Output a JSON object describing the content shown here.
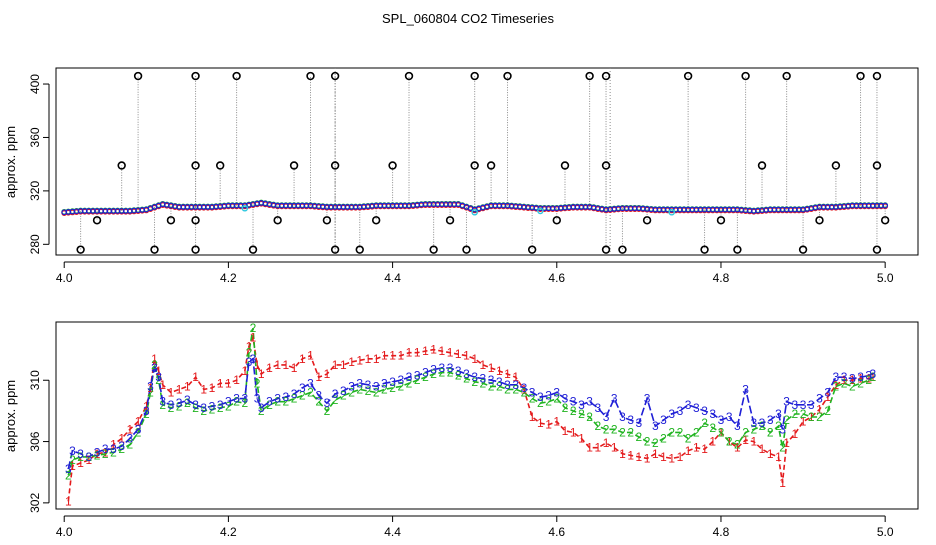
{
  "title": "SPL_060804  CO2 Timeseries",
  "colors": {
    "series1": "#e41a1c",
    "series2": "#21b421",
    "series3": "#1f1fd6",
    "spike": "#000000",
    "spikeLine": "#8c8c8c",
    "cyan": "#2ec8e0"
  },
  "chart_data": [
    {
      "type": "scatter",
      "title": "",
      "xlabel": "",
      "ylabel": "approx. ppm",
      "xlim": [
        3.99,
        5.04
      ],
      "ylim": [
        272,
        412
      ],
      "xticks": [
        4.0,
        4.2,
        4.4,
        4.6,
        4.8,
        5.0
      ],
      "xtick_labels": [
        "4.0",
        "4.2",
        "4.4",
        "4.6",
        "4.8",
        "5.0"
      ],
      "yticks": [
        280,
        320,
        360,
        400
      ],
      "ytick_labels": [
        "280",
        "320",
        "360",
        "400"
      ],
      "baseline": {
        "x": [
          4.0,
          4.02,
          4.04,
          4.06,
          4.08,
          4.1,
          4.12,
          4.14,
          4.16,
          4.18,
          4.2,
          4.22,
          4.24,
          4.26,
          4.28,
          4.3,
          4.32,
          4.34,
          4.36,
          4.38,
          4.4,
          4.42,
          4.44,
          4.46,
          4.48,
          4.5,
          4.52,
          4.54,
          4.56,
          4.58,
          4.6,
          4.62,
          4.64,
          4.66,
          4.68,
          4.7,
          4.72,
          4.74,
          4.76,
          4.78,
          4.8,
          4.82,
          4.84,
          4.86,
          4.88,
          4.9,
          4.92,
          4.94,
          4.96,
          4.98,
          5.0
        ],
        "y": [
          304,
          305,
          305,
          305,
          305,
          306,
          310,
          308,
          308,
          308,
          309,
          309,
          311,
          309,
          309,
          309,
          308,
          308,
          308,
          309,
          309,
          309,
          310,
          310,
          310,
          306,
          309,
          309,
          308,
          307,
          307,
          308,
          308,
          306,
          307,
          307,
          306,
          306,
          306,
          306,
          306,
          306,
          305,
          306,
          306,
          306,
          308,
          308,
          309,
          309,
          309
        ]
      },
      "spikes_high": [
        4.09,
        4.16,
        4.21,
        4.3,
        4.33,
        4.42,
        4.5,
        4.54,
        4.64,
        4.66,
        4.76,
        4.83,
        4.88,
        4.97,
        4.99
      ],
      "spikes_mid": [
        4.07,
        4.16,
        4.19,
        4.28,
        4.33,
        4.4,
        4.5,
        4.52,
        4.61,
        4.66,
        4.85,
        4.94,
        4.99
      ],
      "spikes_low": [
        4.02,
        4.11,
        4.16,
        4.23,
        4.33,
        4.36,
        4.45,
        4.49,
        4.57,
        4.66,
        4.68,
        4.78,
        4.82,
        4.9,
        4.99
      ],
      "spikes_dip": [
        4.04,
        4.13,
        4.16,
        4.26,
        4.32,
        4.38,
        4.47,
        4.6,
        4.71,
        4.8,
        4.92,
        5.0
      ],
      "spike_values": {
        "high": 406,
        "mid": 339,
        "low": 276,
        "dip": 298
      }
    },
    {
      "type": "line",
      "title": "",
      "xlabel": "",
      "ylabel": "approx. ppm",
      "xlim": [
        3.99,
        5.04
      ],
      "ylim": [
        301.6,
        313.8
      ],
      "xticks": [
        4.0,
        4.2,
        4.4,
        4.6,
        4.8,
        5.0
      ],
      "xtick_labels": [
        "4.0",
        "4.2",
        "4.4",
        "4.6",
        "4.8",
        "5.0"
      ],
      "yticks": [
        302,
        306,
        310
      ],
      "ytick_labels": [
        "302",
        "306",
        "310"
      ],
      "series": [
        {
          "name": "1",
          "x": [
            4.005,
            4.01,
            4.02,
            4.03,
            4.04,
            4.05,
            4.06,
            4.07,
            4.08,
            4.09,
            4.1,
            4.105,
            4.11,
            4.115,
            4.12,
            4.13,
            4.14,
            4.15,
            4.16,
            4.17,
            4.18,
            4.19,
            4.2,
            4.21,
            4.22,
            4.225,
            4.23,
            4.235,
            4.24,
            4.25,
            4.26,
            4.27,
            4.28,
            4.29,
            4.3,
            4.31,
            4.32,
            4.33,
            4.34,
            4.35,
            4.36,
            4.37,
            4.38,
            4.39,
            4.4,
            4.41,
            4.42,
            4.43,
            4.44,
            4.45,
            4.46,
            4.47,
            4.48,
            4.49,
            4.5,
            4.51,
            4.52,
            4.53,
            4.54,
            4.55,
            4.56,
            4.57,
            4.58,
            4.59,
            4.6,
            4.61,
            4.62,
            4.63,
            4.64,
            4.65,
            4.66,
            4.67,
            4.68,
            4.69,
            4.7,
            4.71,
            4.72,
            4.73,
            4.74,
            4.75,
            4.76,
            4.77,
            4.78,
            4.79,
            4.8,
            4.81,
            4.82,
            4.83,
            4.84,
            4.85,
            4.86,
            4.87,
            4.875,
            4.88,
            4.89,
            4.9,
            4.91,
            4.92,
            4.93,
            4.94,
            4.95,
            4.96,
            4.97,
            4.98,
            4.985
          ],
          "y": [
            302.1,
            304.4,
            304.6,
            304.8,
            305.2,
            305.3,
            305.8,
            306.2,
            306.8,
            307.3,
            308.3,
            309.5,
            311.4,
            310.6,
            309.7,
            309.2,
            309.4,
            309.6,
            310.2,
            309.4,
            309.5,
            309.8,
            309.8,
            310.0,
            310.6,
            312.2,
            312.8,
            311.0,
            310.4,
            310.8,
            311.0,
            311.0,
            310.8,
            311.4,
            311.6,
            310.2,
            310.4,
            311.0,
            311.0,
            311.2,
            311.3,
            311.4,
            311.4,
            311.6,
            311.6,
            311.6,
            311.8,
            311.8,
            311.9,
            312.0,
            311.9,
            311.8,
            311.7,
            311.6,
            311.4,
            311.0,
            310.8,
            310.6,
            310.4,
            310.2,
            309.4,
            307.6,
            307.2,
            307.1,
            307.3,
            306.7,
            306.6,
            306.2,
            305.6,
            305.6,
            305.9,
            305.6,
            305.2,
            305.1,
            305.0,
            304.9,
            305.2,
            305.0,
            304.9,
            305.0,
            305.4,
            305.6,
            305.5,
            306.0,
            306.6,
            306.0,
            305.6,
            306.1,
            306.0,
            305.5,
            305.2,
            305.0,
            303.3,
            305.9,
            306.5,
            307.3,
            307.6,
            308.1,
            308.9,
            309.7,
            310.0,
            310.0,
            310.1,
            310.1,
            310.2
          ]
        },
        {
          "name": "2",
          "x": [
            4.005,
            4.01,
            4.02,
            4.03,
            4.04,
            4.05,
            4.06,
            4.07,
            4.08,
            4.09,
            4.1,
            4.105,
            4.11,
            4.115,
            4.12,
            4.13,
            4.14,
            4.15,
            4.16,
            4.17,
            4.18,
            4.19,
            4.2,
            4.21,
            4.22,
            4.225,
            4.23,
            4.235,
            4.24,
            4.25,
            4.26,
            4.27,
            4.28,
            4.29,
            4.3,
            4.31,
            4.32,
            4.33,
            4.34,
            4.35,
            4.36,
            4.37,
            4.38,
            4.39,
            4.4,
            4.41,
            4.42,
            4.43,
            4.44,
            4.45,
            4.46,
            4.47,
            4.48,
            4.49,
            4.5,
            4.51,
            4.52,
            4.53,
            4.54,
            4.55,
            4.56,
            4.57,
            4.58,
            4.59,
            4.6,
            4.61,
            4.62,
            4.63,
            4.64,
            4.65,
            4.66,
            4.67,
            4.68,
            4.69,
            4.7,
            4.71,
            4.72,
            4.73,
            4.74,
            4.75,
            4.76,
            4.77,
            4.78,
            4.79,
            4.8,
            4.81,
            4.82,
            4.83,
            4.84,
            4.85,
            4.86,
            4.87,
            4.875,
            4.88,
            4.89,
            4.9,
            4.91,
            4.92,
            4.93,
            4.94,
            4.95,
            4.96,
            4.97,
            4.98,
            4.985
          ],
          "y": [
            303.8,
            304.8,
            305.0,
            305.0,
            305.1,
            305.2,
            305.3,
            305.5,
            305.8,
            306.6,
            307.8,
            309.2,
            311.0,
            310.0,
            308.4,
            308.2,
            308.3,
            308.5,
            308.2,
            308.0,
            308.1,
            308.2,
            308.3,
            308.6,
            308.5,
            311.8,
            313.4,
            309.8,
            308.0,
            308.4,
            308.6,
            308.6,
            308.8,
            309.0,
            309.2,
            308.6,
            308.0,
            308.7,
            309.0,
            309.2,
            309.4,
            309.3,
            309.2,
            309.4,
            309.5,
            309.6,
            309.8,
            310.0,
            310.2,
            310.4,
            310.5,
            310.5,
            310.3,
            310.1,
            309.9,
            309.8,
            309.6,
            309.6,
            309.4,
            309.4,
            309.2,
            308.8,
            308.5,
            308.6,
            308.8,
            308.2,
            308.0,
            307.8,
            307.6,
            307.0,
            306.8,
            306.8,
            306.6,
            306.6,
            306.3,
            306.0,
            305.9,
            306.2,
            306.6,
            306.6,
            306.2,
            306.6,
            307.2,
            306.9,
            306.6,
            306.0,
            305.8,
            306.6,
            306.8,
            307.0,
            306.6,
            307.0,
            305.6,
            307.4,
            307.8,
            307.8,
            307.6,
            307.6,
            308.0,
            309.6,
            309.8,
            309.6,
            309.8,
            310.0,
            310.2
          ]
        },
        {
          "name": "3",
          "x": [
            4.005,
            4.01,
            4.02,
            4.03,
            4.04,
            4.05,
            4.06,
            4.07,
            4.08,
            4.09,
            4.1,
            4.105,
            4.11,
            4.115,
            4.12,
            4.13,
            4.14,
            4.15,
            4.16,
            4.17,
            4.18,
            4.19,
            4.2,
            4.21,
            4.22,
            4.225,
            4.23,
            4.235,
            4.24,
            4.25,
            4.26,
            4.27,
            4.28,
            4.29,
            4.3,
            4.31,
            4.32,
            4.33,
            4.34,
            4.35,
            4.36,
            4.37,
            4.38,
            4.39,
            4.4,
            4.41,
            4.42,
            4.43,
            4.44,
            4.45,
            4.46,
            4.47,
            4.48,
            4.49,
            4.5,
            4.51,
            4.52,
            4.53,
            4.54,
            4.55,
            4.56,
            4.57,
            4.58,
            4.59,
            4.6,
            4.61,
            4.62,
            4.63,
            4.64,
            4.65,
            4.66,
            4.67,
            4.68,
            4.69,
            4.7,
            4.71,
            4.72,
            4.73,
            4.74,
            4.75,
            4.76,
            4.77,
            4.78,
            4.79,
            4.8,
            4.81,
            4.82,
            4.83,
            4.84,
            4.85,
            4.86,
            4.87,
            4.875,
            4.88,
            4.89,
            4.9,
            4.91,
            4.92,
            4.93,
            4.94,
            4.95,
            4.96,
            4.97,
            4.98,
            4.985
          ],
          "y": [
            304.2,
            305.4,
            305.2,
            305.0,
            305.3,
            305.5,
            305.5,
            305.7,
            306.2,
            306.8,
            308.0,
            309.6,
            310.8,
            310.2,
            308.6,
            308.4,
            308.5,
            308.7,
            308.4,
            308.2,
            308.3,
            308.4,
            308.6,
            308.8,
            308.8,
            311.2,
            311.4,
            308.8,
            308.2,
            308.6,
            308.8,
            308.9,
            309.1,
            309.5,
            309.8,
            309.0,
            308.5,
            309.1,
            309.3,
            309.6,
            309.8,
            309.7,
            309.6,
            309.8,
            309.9,
            310.0,
            310.2,
            310.3,
            310.5,
            310.7,
            310.8,
            310.8,
            310.6,
            310.4,
            310.2,
            310.1,
            310.0,
            309.9,
            309.7,
            309.7,
            309.5,
            309.2,
            308.9,
            309.0,
            309.2,
            308.8,
            308.6,
            308.4,
            308.6,
            308.2,
            307.6,
            308.8,
            307.6,
            307.4,
            307.2,
            308.8,
            307.0,
            307.4,
            307.8,
            308.0,
            308.4,
            308.2,
            308.0,
            307.8,
            307.4,
            307.6,
            307.0,
            309.4,
            307.2,
            307.2,
            307.4,
            307.8,
            306.8,
            308.6,
            308.4,
            308.4,
            308.4,
            308.8,
            309.2,
            310.2,
            310.2,
            310.1,
            310.2,
            310.3,
            310.4
          ]
        }
      ]
    }
  ]
}
